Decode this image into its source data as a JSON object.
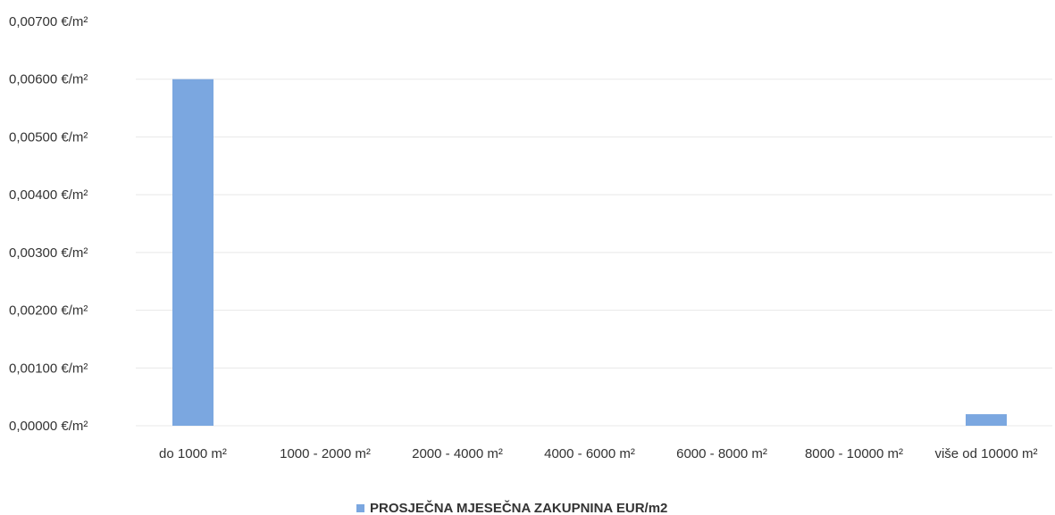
{
  "chart_data": {
    "type": "bar",
    "categories": [
      "do 1000 m²",
      "1000 - 2000 m²",
      "2000 - 4000 m²",
      "4000 - 6000 m²",
      "6000 - 8000 m²",
      "8000 - 10000 m²",
      "više od 10000 m²"
    ],
    "series": [
      {
        "name": "PROSJEČNA MJESEČNA ZAKUPNINA EUR/m2",
        "values": [
          0.006,
          0,
          0,
          0,
          0,
          0,
          0.0002
        ],
        "color": "#7ba7e0"
      }
    ],
    "yticks": [
      {
        "value": 0.007,
        "label": "0,00700 €/m²"
      },
      {
        "value": 0.006,
        "label": "0,00600 €/m²"
      },
      {
        "value": 0.005,
        "label": "0,00500 €/m²"
      },
      {
        "value": 0.004,
        "label": "0,00400 €/m²"
      },
      {
        "value": 0.003,
        "label": "0,00300 €/m²"
      },
      {
        "value": 0.002,
        "label": "0,00200 €/m²"
      },
      {
        "value": 0.001,
        "label": "0,00100 €/m²"
      },
      {
        "value": 0.0,
        "label": "0,00000 €/m²"
      }
    ],
    "ylim": [
      0,
      0.007
    ],
    "grid": true,
    "legend_position": "bottom",
    "title": "",
    "xlabel": "",
    "ylabel": ""
  }
}
